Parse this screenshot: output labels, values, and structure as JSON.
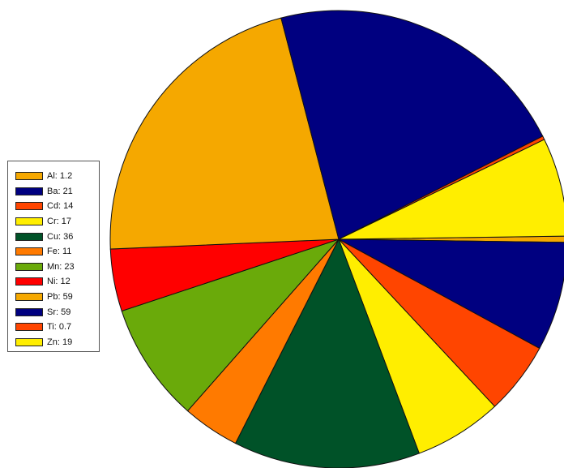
{
  "chart_data": {
    "type": "pie",
    "title": "",
    "legend_position": "left",
    "slices": [
      {
        "name": "Al",
        "value": 1.2,
        "label": "Al: 1.2",
        "color": "#F5A800"
      },
      {
        "name": "Ba",
        "value": 21,
        "label": "Ba: 21",
        "color": "#000080"
      },
      {
        "name": "Cd",
        "value": 14,
        "label": "Cd: 14",
        "color": "#FF4500"
      },
      {
        "name": "Cr",
        "value": 17,
        "label": "Cr: 17",
        "color": "#FFEE00"
      },
      {
        "name": "Cu",
        "value": 36,
        "label": "Cu: 36",
        "color": "#005228"
      },
      {
        "name": "Fe",
        "value": 11,
        "label": "Fe: 11",
        "color": "#FF7A00"
      },
      {
        "name": "Mn",
        "value": 23,
        "label": "Mn: 23",
        "color": "#6AAA0A"
      },
      {
        "name": "Ni",
        "value": 12,
        "label": "Ni: 12",
        "color": "#FF0000"
      },
      {
        "name": "Pb",
        "value": 59,
        "label": "Pb: 59",
        "color": "#F5A800"
      },
      {
        "name": "Sr",
        "value": 59,
        "label": "Sr: 59",
        "color": "#000080"
      },
      {
        "name": "Ti",
        "value": 0.7,
        "label": "Ti: 0.7",
        "color": "#FF4500"
      },
      {
        "name": "Zn",
        "value": 19,
        "label": "Zn: 19",
        "color": "#FFEE00"
      }
    ]
  }
}
